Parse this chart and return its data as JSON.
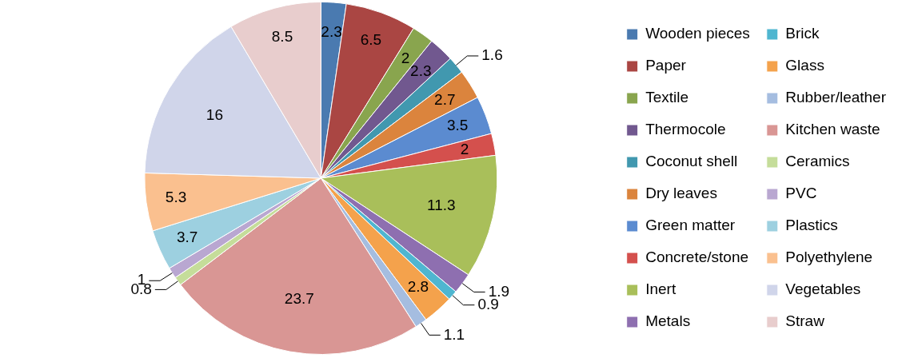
{
  "chart_data": {
    "type": "pie",
    "categories": [
      "Wooden pieces",
      "Paper",
      "Textile",
      "Thermocole",
      "Coconut shell",
      "Dry leaves",
      "Green matter",
      "Concrete/stone",
      "Inert",
      "Metals",
      "Brick",
      "Glass",
      "Rubber/leather",
      "Kitchen waste",
      "Ceramics",
      "PVC",
      "Plastics",
      "Polyethylene",
      "Vegetables",
      "Straw"
    ],
    "values": [
      2.3,
      6.5,
      2,
      2.3,
      1.6,
      2.7,
      3.5,
      2,
      11.3,
      1.9,
      0.9,
      2.8,
      1.1,
      23.7,
      0.8,
      1,
      3.7,
      5.3,
      16,
      8.5
    ],
    "colors": [
      "#4a7ab0",
      "#aa4643",
      "#89a54e",
      "#71588f",
      "#4198af",
      "#db843d",
      "#5b8bd0",
      "#d4504d",
      "#a9bf5a",
      "#8e6fb0",
      "#4fb6d0",
      "#f4a24c",
      "#a5bde0",
      "#d99694",
      "#c5dd9a",
      "#b9a7d1",
      "#9dd0e0",
      "#fac08f",
      "#d0d5ea",
      "#e8cdcd"
    ],
    "data_labels": true,
    "legend": "right"
  }
}
